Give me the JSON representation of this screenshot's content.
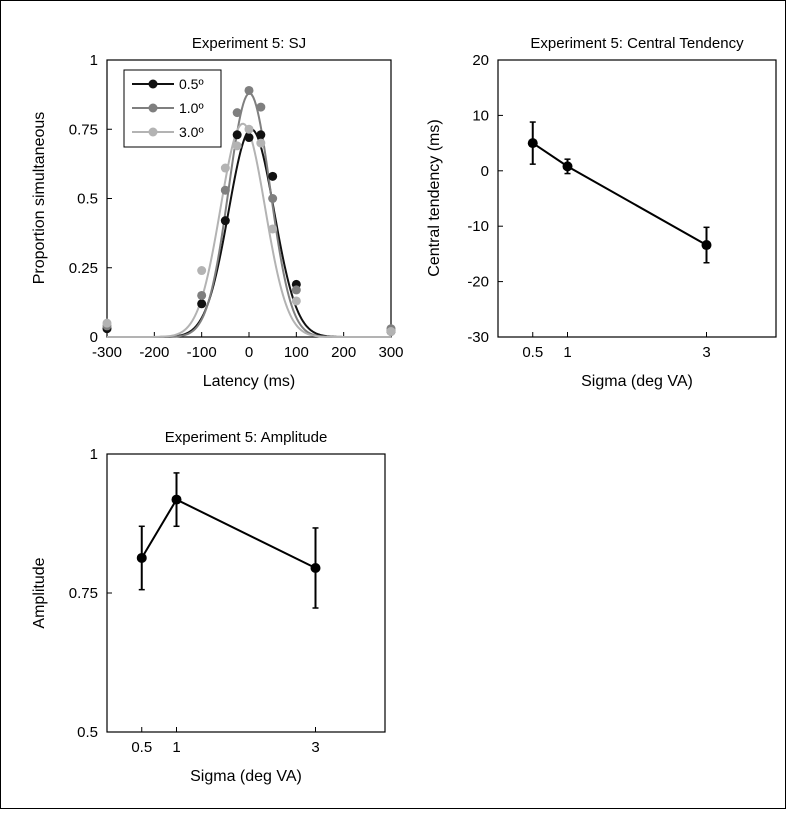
{
  "chart_data": [
    {
      "type": "scatter",
      "title": "Experiment 5: SJ",
      "xlabel": "Latency (ms)",
      "ylabel": "Proportion simultaneous",
      "xlim": [
        -300,
        300
      ],
      "ylim": [
        0,
        1
      ],
      "xticks": [
        "-300",
        "-200",
        "-100",
        "0",
        "100",
        "200",
        "300"
      ],
      "yticks": [
        "0",
        "0.25",
        "0.5",
        "0.75",
        "1"
      ],
      "legend": "top-left",
      "series": [
        {
          "name": "0.5º",
          "color": "#111111",
          "x": [
            -300,
            -100,
            -50,
            -25,
            0,
            25,
            50,
            100,
            300
          ],
          "y": [
            0.03,
            0.12,
            0.42,
            0.73,
            0.72,
            0.73,
            0.58,
            0.19,
            0.02
          ],
          "fit": {
            "amplitude": 0.75,
            "mu": 5,
            "sigma": 48
          }
        },
        {
          "name": "1.0º",
          "color": "#7f7f7f",
          "x": [
            -300,
            -100,
            -50,
            -25,
            0,
            25,
            50,
            100,
            300
          ],
          "y": [
            0.04,
            0.15,
            0.53,
            0.81,
            0.89,
            0.83,
            0.5,
            0.17,
            0.03
          ],
          "fit": {
            "amplitude": 0.88,
            "mu": 1,
            "sigma": 44
          }
        },
        {
          "name": "3.0º",
          "color": "#b3b3b3",
          "x": [
            -300,
            -100,
            -50,
            -25,
            0,
            25,
            50,
            100,
            300
          ],
          "y": [
            0.05,
            0.24,
            0.61,
            0.69,
            0.75,
            0.7,
            0.39,
            0.13,
            0.02
          ],
          "fit": {
            "amplitude": 0.77,
            "mu": -13,
            "sigma": 47
          }
        }
      ]
    },
    {
      "type": "line",
      "title": "Experiment 5: Central Tendency",
      "xlabel": "Sigma (deg VA)",
      "ylabel": "Central tendency (ms)",
      "xlim": [
        0,
        4
      ],
      "ylim": [
        -30,
        20
      ],
      "xticks": [
        "0.5",
        "1",
        "3"
      ],
      "yticks": [
        "-30",
        "-20",
        "-10",
        "0",
        "10",
        "20"
      ],
      "series": [
        {
          "name": "",
          "x": [
            0.5,
            1,
            3
          ],
          "y": [
            5,
            0.8,
            -13.4
          ],
          "err": [
            3.8,
            1.3,
            3.2
          ]
        }
      ]
    },
    {
      "type": "line",
      "title": "Experiment 5: Amplitude",
      "xlabel": "Sigma (deg VA)",
      "ylabel": "Amplitude",
      "xlim": [
        0,
        4
      ],
      "ylim": [
        0.5,
        1
      ],
      "xticks": [
        "0.5",
        "1",
        "3"
      ],
      "yticks": [
        "0.5",
        "0.75",
        "1"
      ],
      "series": [
        {
          "name": "",
          "x": [
            0.5,
            1,
            3
          ],
          "y": [
            0.813,
            0.918,
            0.795
          ],
          "err": [
            0.057,
            0.048,
            0.072
          ]
        }
      ]
    }
  ]
}
